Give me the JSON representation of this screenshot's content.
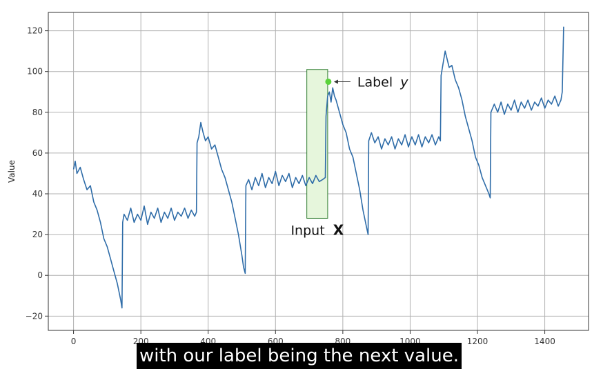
{
  "caption": "with our label being the next value.",
  "colors": {
    "series": "#2e6ca8",
    "grid": "#b0b0b0",
    "window_fill": "#e6f6dc",
    "window_stroke": "#2f7d2f",
    "label_point": "#5ad33a"
  },
  "chart_data": {
    "type": "line",
    "title": "",
    "xlabel": "",
    "ylabel": "Value",
    "xlim": [
      -75,
      1530
    ],
    "ylim": [
      -27,
      129
    ],
    "xticks": [
      0,
      200,
      400,
      600,
      800,
      1000,
      1200,
      1400
    ],
    "yticks": [
      -20,
      0,
      20,
      40,
      60,
      80,
      100,
      120
    ],
    "xtick_labels": [
      "0",
      "200",
      "400",
      "600",
      "800",
      "1000",
      "1200",
      "1400"
    ],
    "ytick_labels": [
      "−20",
      "0",
      "20",
      "40",
      "60",
      "80",
      "100",
      "120"
    ],
    "grid": true,
    "series": [
      {
        "points": [
          [
            0,
            52
          ],
          [
            5,
            56
          ],
          [
            10,
            50
          ],
          [
            20,
            53
          ],
          [
            30,
            47
          ],
          [
            40,
            42
          ],
          [
            50,
            44
          ],
          [
            60,
            36
          ],
          [
            70,
            32
          ],
          [
            80,
            26
          ],
          [
            90,
            18
          ],
          [
            100,
            14
          ],
          [
            110,
            8
          ],
          [
            120,
            2
          ],
          [
            130,
            -4
          ],
          [
            140,
            -12
          ],
          [
            144,
            -16
          ],
          [
            146,
            26
          ],
          [
            150,
            30
          ],
          [
            160,
            27
          ],
          [
            170,
            33
          ],
          [
            180,
            26
          ],
          [
            190,
            30
          ],
          [
            200,
            27
          ],
          [
            210,
            34
          ],
          [
            220,
            25
          ],
          [
            230,
            31
          ],
          [
            240,
            28
          ],
          [
            250,
            33
          ],
          [
            260,
            26
          ],
          [
            270,
            31
          ],
          [
            280,
            28
          ],
          [
            290,
            33
          ],
          [
            300,
            27
          ],
          [
            310,
            31
          ],
          [
            320,
            29
          ],
          [
            330,
            33
          ],
          [
            340,
            28
          ],
          [
            350,
            32
          ],
          [
            360,
            29
          ],
          [
            365,
            31
          ],
          [
            367,
            65
          ],
          [
            372,
            68
          ],
          [
            378,
            75
          ],
          [
            385,
            70
          ],
          [
            392,
            66
          ],
          [
            400,
            68
          ],
          [
            410,
            62
          ],
          [
            420,
            64
          ],
          [
            430,
            58
          ],
          [
            440,
            52
          ],
          [
            450,
            48
          ],
          [
            460,
            42
          ],
          [
            470,
            36
          ],
          [
            480,
            28
          ],
          [
            490,
            20
          ],
          [
            500,
            10
          ],
          [
            505,
            4
          ],
          [
            510,
            1
          ],
          [
            512,
            44
          ],
          [
            520,
            47
          ],
          [
            530,
            42
          ],
          [
            540,
            48
          ],
          [
            550,
            44
          ],
          [
            560,
            50
          ],
          [
            570,
            43
          ],
          [
            580,
            48
          ],
          [
            590,
            45
          ],
          [
            600,
            51
          ],
          [
            610,
            44
          ],
          [
            620,
            49
          ],
          [
            630,
            46
          ],
          [
            640,
            50
          ],
          [
            650,
            43
          ],
          [
            660,
            48
          ],
          [
            670,
            45
          ],
          [
            680,
            49
          ],
          [
            690,
            44
          ],
          [
            700,
            48
          ],
          [
            710,
            45
          ],
          [
            720,
            49
          ],
          [
            730,
            46
          ],
          [
            740,
            47
          ],
          [
            748,
            48
          ],
          [
            750,
            78
          ],
          [
            755,
            88
          ],
          [
            760,
            90
          ],
          [
            765,
            85
          ],
          [
            770,
            92
          ],
          [
            775,
            88
          ],
          [
            780,
            86
          ],
          [
            790,
            80
          ],
          [
            800,
            74
          ],
          [
            810,
            70
          ],
          [
            820,
            62
          ],
          [
            830,
            58
          ],
          [
            840,
            50
          ],
          [
            850,
            42
          ],
          [
            860,
            32
          ],
          [
            870,
            24
          ],
          [
            875,
            20
          ],
          [
            877,
            66
          ],
          [
            885,
            70
          ],
          [
            895,
            65
          ],
          [
            905,
            68
          ],
          [
            915,
            62
          ],
          [
            925,
            67
          ],
          [
            935,
            64
          ],
          [
            945,
            68
          ],
          [
            955,
            62
          ],
          [
            965,
            67
          ],
          [
            975,
            64
          ],
          [
            985,
            69
          ],
          [
            995,
            63
          ],
          [
            1005,
            68
          ],
          [
            1015,
            64
          ],
          [
            1025,
            69
          ],
          [
            1035,
            63
          ],
          [
            1045,
            68
          ],
          [
            1055,
            65
          ],
          [
            1065,
            69
          ],
          [
            1075,
            64
          ],
          [
            1085,
            68
          ],
          [
            1090,
            66
          ],
          [
            1092,
            98
          ],
          [
            1098,
            104
          ],
          [
            1104,
            110
          ],
          [
            1110,
            106
          ],
          [
            1116,
            102
          ],
          [
            1124,
            103
          ],
          [
            1134,
            96
          ],
          [
            1144,
            92
          ],
          [
            1154,
            86
          ],
          [
            1164,
            78
          ],
          [
            1174,
            72
          ],
          [
            1184,
            66
          ],
          [
            1194,
            58
          ],
          [
            1204,
            54
          ],
          [
            1214,
            48
          ],
          [
            1224,
            44
          ],
          [
            1234,
            40
          ],
          [
            1238,
            38
          ],
          [
            1240,
            80
          ],
          [
            1250,
            84
          ],
          [
            1260,
            80
          ],
          [
            1270,
            85
          ],
          [
            1280,
            79
          ],
          [
            1290,
            84
          ],
          [
            1300,
            81
          ],
          [
            1310,
            86
          ],
          [
            1320,
            80
          ],
          [
            1330,
            85
          ],
          [
            1340,
            82
          ],
          [
            1350,
            86
          ],
          [
            1360,
            81
          ],
          [
            1370,
            85
          ],
          [
            1380,
            83
          ],
          [
            1390,
            87
          ],
          [
            1400,
            82
          ],
          [
            1410,
            86
          ],
          [
            1420,
            84
          ],
          [
            1430,
            88
          ],
          [
            1440,
            83
          ],
          [
            1448,
            86
          ],
          [
            1452,
            90
          ],
          [
            1456,
            122
          ]
        ]
      }
    ],
    "annotations": {
      "input_window": {
        "x0": 693,
        "x1": 755,
        "y0": 28,
        "y1": 101,
        "label_plain": "Input",
        "label_bold": "X"
      },
      "label_point": {
        "x": 757,
        "y": 95,
        "text_plain": "Label",
        "text_italic": "y"
      }
    }
  }
}
